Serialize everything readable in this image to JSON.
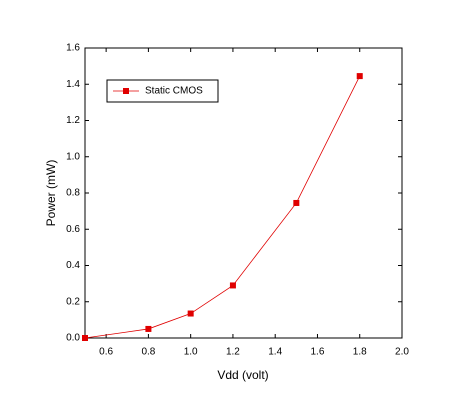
{
  "chart_data": {
    "type": "line",
    "x_label": "Vdd (volt)",
    "y_label": "Power (mW)",
    "x": [
      0.5,
      0.8,
      1.0,
      1.2,
      1.5,
      1.8
    ],
    "series": [
      {
        "name": "Static CMOS",
        "color": "#e00000",
        "values": [
          0.0,
          0.05,
          0.135,
          0.29,
          0.745,
          1.445
        ]
      }
    ],
    "xlim": [
      0.5,
      2.0
    ],
    "xticks": [
      0.6,
      0.8,
      {
        "value": 1.0,
        "label": "1.0"
      },
      1.2,
      1.4,
      1.6,
      1.8,
      {
        "value": 2.0,
        "label": "2.0"
      }
    ],
    "ylim": [
      0.0,
      1.6
    ],
    "yticks": [
      {
        "value": 0.0,
        "label": "0.0"
      },
      0.2,
      0.4,
      0.6,
      0.8,
      {
        "value": 1.0,
        "label": "1.0"
      },
      1.2,
      1.4,
      1.6
    ],
    "legend": "upper-left"
  }
}
